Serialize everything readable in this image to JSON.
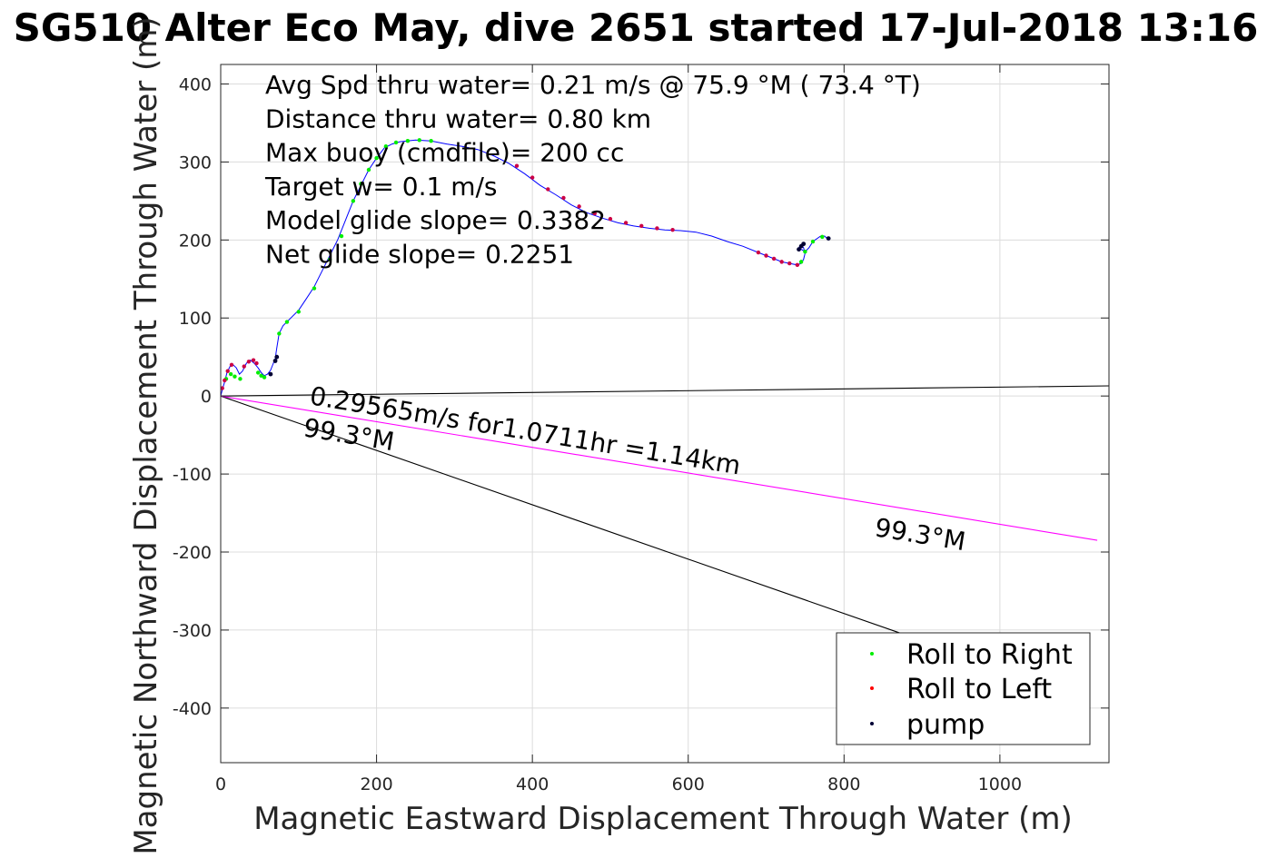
{
  "chart_data": {
    "type": "line",
    "title": "SG510 Alter Eco May, dive 2651 started 17-Jul-2018 13:16",
    "xlabel": "Magnetic Eastward Displacement Through Water (m)",
    "ylabel": "Magnetic Northward Displacement Through Water (m)",
    "xlim": [
      0,
      1140
    ],
    "ylim": [
      -470,
      425
    ],
    "xticks": [
      0,
      200,
      400,
      600,
      800,
      1000
    ],
    "yticks": [
      -400,
      -300,
      -200,
      -100,
      0,
      100,
      200,
      300,
      400
    ],
    "grid": true,
    "annotations": [
      "Avg Spd thru water=  0.21 m/s @  75.9 °M ( 73.4 °T)",
      "Distance thru water=  0.80 km",
      "Max buoy (cmdfile)= 200 cc",
      "Target w= 0.1 m/s",
      "Model glide slope= 0.3382",
      "Net glide slope= 0.2251"
    ],
    "line_labels": {
      "speed": "0.29565m/s for1.0711hr =1.14km",
      "heading_upper": "99.3°M",
      "heading_lower": "99.3°M"
    },
    "series": [
      {
        "name": "track",
        "color": "#0000ff",
        "x": [
          0,
          2,
          5,
          8,
          12,
          16,
          20,
          24,
          28,
          33,
          38,
          43,
          48,
          52,
          56,
          60,
          64,
          66,
          68,
          70,
          71,
          72,
          75,
          80,
          90,
          100,
          110,
          120,
          130,
          140,
          150,
          160,
          170,
          180,
          190,
          200,
          210,
          220,
          230,
          250,
          270,
          290,
          310,
          330,
          350,
          370,
          390,
          410,
          430,
          450,
          470,
          490,
          510,
          530,
          550,
          570,
          590,
          610,
          630,
          650,
          670,
          690,
          700,
          710,
          720,
          730,
          740,
          745,
          748,
          750,
          748,
          745,
          742,
          745,
          750,
          755,
          760,
          770,
          775,
          780
        ],
        "y": [
          0,
          8,
          18,
          30,
          38,
          40,
          36,
          28,
          32,
          42,
          46,
          42,
          36,
          30,
          26,
          28,
          33,
          38,
          43,
          47,
          55,
          62,
          80,
          90,
          100,
          110,
          125,
          140,
          160,
          180,
          200,
          225,
          250,
          270,
          290,
          305,
          318,
          323,
          326,
          328,
          327,
          323,
          320,
          316,
          308,
          298,
          285,
          270,
          258,
          245,
          235,
          228,
          222,
          218,
          215,
          213,
          212,
          210,
          205,
          198,
          192,
          184,
          180,
          176,
          172,
          170,
          168,
          170,
          175,
          183,
          190,
          194,
          190,
          188,
          185,
          190,
          198,
          205,
          205,
          200
        ]
      },
      {
        "name": "heading line",
        "color": "#000000",
        "x": [
          0,
          1140
        ],
        "y": [
          0,
          13
        ]
      },
      {
        "name": "glide line",
        "color": "#000000",
        "x": [
          0,
          875
        ],
        "y": [
          0,
          -305
        ]
      },
      {
        "name": "current line",
        "color": "#ff00ff",
        "x": [
          0,
          1125
        ],
        "y": [
          0,
          -185
        ]
      }
    ],
    "point_groups": [
      {
        "name": "Roll to Right",
        "color": "#00ee00",
        "x": [
          7,
          13,
          18,
          25,
          48,
          52,
          56,
          75,
          85,
          100,
          120,
          140,
          155,
          170,
          180,
          190,
          200,
          212,
          225,
          240,
          255,
          270,
          745,
          750,
          760,
          772
        ],
        "y": [
          22,
          28,
          25,
          22,
          30,
          26,
          24,
          80,
          95,
          108,
          138,
          175,
          205,
          250,
          272,
          290,
          305,
          320,
          325,
          327,
          328,
          327,
          172,
          185,
          198,
          204
        ]
      },
      {
        "name": "Roll to Left",
        "color": "#ff0000",
        "x": [
          2,
          5,
          9,
          14,
          30,
          36,
          42,
          46,
          380,
          400,
          420,
          440,
          460,
          480,
          500,
          520,
          540,
          560,
          580,
          690,
          700,
          710,
          720,
          730,
          740
        ],
        "y": [
          10,
          20,
          32,
          40,
          38,
          44,
          46,
          42,
          295,
          280,
          265,
          254,
          243,
          234,
          227,
          222,
          218,
          215,
          213,
          184,
          180,
          176,
          172,
          170,
          168
        ],
        "marker_color": "#cc0044"
      },
      {
        "name": "pump",
        "color": "#000033",
        "x": [
          64,
          70,
          72,
          745,
          742,
          748,
          780
        ],
        "y": [
          28,
          45,
          50,
          192,
          188,
          195,
          202
        ]
      }
    ],
    "legend": {
      "position": "bottom-right",
      "entries": [
        "Roll to Right",
        "Roll to Left",
        "pump"
      ],
      "colors": [
        "#00ee00",
        "#ff0000",
        "#000033"
      ]
    }
  }
}
